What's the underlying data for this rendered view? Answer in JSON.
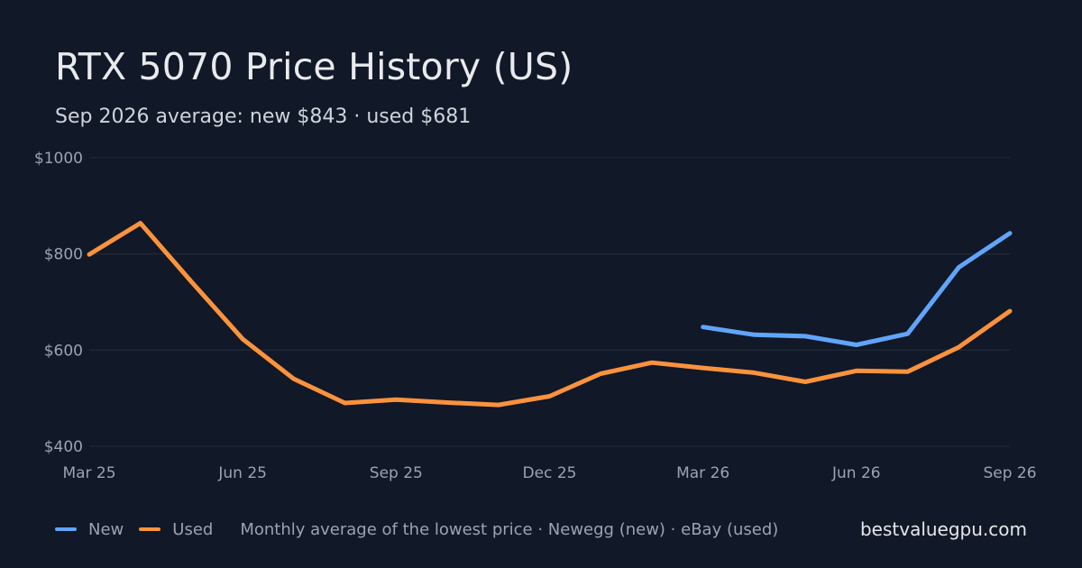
{
  "header": {
    "title": "RTX 5070 Price History (US)",
    "subtitle": "Sep 2026 average: new $843 · used $681"
  },
  "legend": {
    "new_label": "New",
    "used_label": "Used",
    "note": "Monthly average of the lowest price · Newegg (new) · eBay (used)"
  },
  "brand": "bestvaluegpu.com",
  "colors": {
    "background": "#111827",
    "new": "#60a5fa",
    "used": "#fb923c",
    "grid": "#1f2937"
  },
  "chart_data": {
    "type": "line",
    "x": [
      "2025-03",
      "2025-04",
      "2025-05",
      "2025-06",
      "2025-07",
      "2025-08",
      "2025-09",
      "2025-10",
      "2025-11",
      "2025-12",
      "2026-01",
      "2026-02",
      "2026-03",
      "2026-04",
      "2026-05",
      "2026-06",
      "2026-07",
      "2026-08",
      "2026-09"
    ],
    "x_ticks": [
      {
        "x": "2025-03",
        "label": "Mar 25"
      },
      {
        "x": "2025-06",
        "label": "Jun 25"
      },
      {
        "x": "2025-09",
        "label": "Sep 25"
      },
      {
        "x": "2025-12",
        "label": "Dec 25"
      },
      {
        "x": "2026-03",
        "label": "Mar 26"
      },
      {
        "x": "2026-06",
        "label": "Jun 26"
      },
      {
        "x": "2026-09",
        "label": "Sep 26"
      }
    ],
    "y_ticks": [
      {
        "value": 400,
        "label": "$400"
      },
      {
        "value": 600,
        "label": "$600"
      },
      {
        "value": 800,
        "label": "$800"
      },
      {
        "value": 1000,
        "label": "$1000"
      }
    ],
    "ylim": [
      400,
      1000
    ],
    "grid": true,
    "legend_position": "bottom-left",
    "series": [
      {
        "name": "New",
        "color": "#60a5fa",
        "values": [
          null,
          null,
          null,
          null,
          null,
          null,
          null,
          null,
          null,
          null,
          null,
          null,
          648,
          632,
          629,
          611,
          634,
          772,
          843
        ]
      },
      {
        "name": "Used",
        "color": "#fb923c",
        "values": [
          799,
          864,
          742,
          623,
          540,
          490,
          497,
          491,
          486,
          504,
          551,
          574,
          563,
          553,
          534,
          557,
          555,
          606,
          681
        ]
      }
    ]
  }
}
